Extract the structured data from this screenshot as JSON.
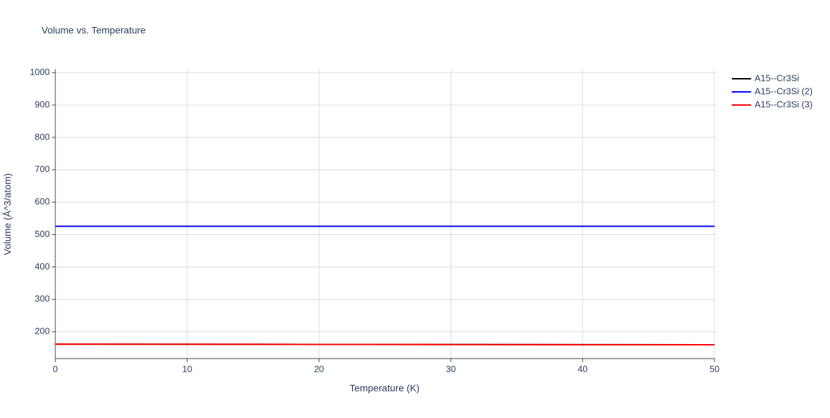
{
  "chart_data": {
    "type": "line",
    "title": "Volume vs. Temperature",
    "x_label": "Temperature (K)",
    "y_label": "Volume (Å^3/atom)",
    "x": [
      0,
      10,
      20,
      30,
      40,
      50
    ],
    "series": [
      {
        "name": "A15--Cr3Si",
        "color": "#000000",
        "values": [
          161.5,
          161.2,
          160.8,
          160.4,
          160.0,
          159.6
        ]
      },
      {
        "name": "A15--Cr3Si (2)",
        "color": "#0000ff",
        "values": [
          525.5,
          525.5,
          525.5,
          525.5,
          525.5,
          525.5
        ]
      },
      {
        "name": "A15--Cr3Si (3)",
        "color": "#ff0000",
        "values": [
          161.5,
          161.2,
          160.8,
          160.4,
          160.0,
          159.6
        ]
      }
    ],
    "xlim": [
      0,
      50
    ],
    "xticks": [
      0,
      10,
      20,
      30,
      40,
      50
    ],
    "ylim": [
      117,
      1011
    ],
    "yticks": [
      200,
      300,
      400,
      500,
      600,
      700,
      800,
      900,
      1000
    ],
    "grid": true,
    "legend": "top-right"
  }
}
